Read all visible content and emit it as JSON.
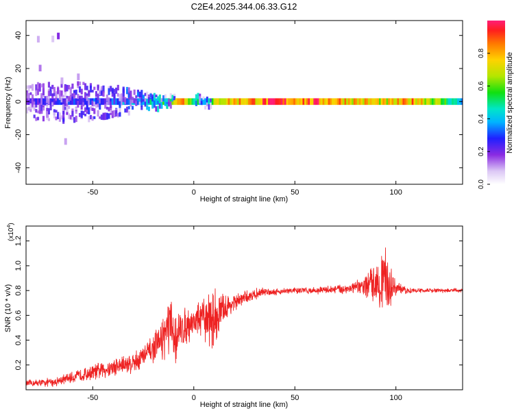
{
  "title": "C2E4.2025.344.06.33.G12",
  "colors": {
    "snr_line": "#ee2222",
    "axis": "#000000"
  },
  "chart_data": [
    {
      "type": "heatmap",
      "name": "spectrogram",
      "xlabel": "Height of straight line (km)",
      "ylabel": "Frequency (Hz)",
      "xlim": [
        -83,
        133
      ],
      "ylim": [
        -50,
        49
      ],
      "xticks": [
        -50,
        0,
        50,
        100
      ],
      "xtick_labels": [
        "-50",
        "0",
        "50",
        "100"
      ],
      "yticks": [
        -40,
        -20,
        0,
        20,
        40
      ],
      "ytick_labels": [
        "-40",
        "-20",
        "0",
        "20",
        "40"
      ],
      "band_center_hz": 0,
      "band_halfwidth_hz": 2,
      "colorbar": {
        "label": "Normalized spectral amplitude",
        "range": [
          0,
          1
        ],
        "ticks": [
          0.0,
          0.2,
          0.4,
          0.6,
          0.8
        ],
        "tick_labels": [
          "0.0",
          "0.2",
          "0.4",
          "0.6",
          "0.8"
        ],
        "colormap": "rainbow"
      },
      "profile": [
        {
          "x": -83,
          "amp": 0.25,
          "spread": 8
        },
        {
          "x": -60,
          "amp": 0.3,
          "spread": 9
        },
        {
          "x": -40,
          "amp": 0.35,
          "spread": 7
        },
        {
          "x": -28,
          "amp": 0.45,
          "spread": 5
        },
        {
          "x": -15,
          "amp": 0.55,
          "spread": 3
        },
        {
          "x": -5,
          "amp": 0.85,
          "spread": 2
        },
        {
          "x": 5,
          "amp": 0.35,
          "spread": 3
        },
        {
          "x": 12,
          "amp": 0.8,
          "spread": 2
        },
        {
          "x": 40,
          "amp": 0.95,
          "spread": 2
        },
        {
          "x": 68,
          "amp": 0.9,
          "spread": 2
        },
        {
          "x": 95,
          "amp": 0.75,
          "spread": 2
        },
        {
          "x": 110,
          "amp": 0.88,
          "spread": 2
        },
        {
          "x": 133,
          "amp": 0.4,
          "spread": 2
        }
      ]
    },
    {
      "type": "line",
      "name": "snr",
      "xlabel": "Height of straight line (km)",
      "ylabel": "SNR (10 * v/v)",
      "y_scale_label": "(x10^4)",
      "y_scale_base": "(x10",
      "y_scale_exp": "4",
      "xlim": [
        -83,
        133
      ],
      "ylim": [
        0.0,
        1.32
      ],
      "xticks": [
        -50,
        0,
        50,
        100
      ],
      "xtick_labels": [
        "-50",
        "0",
        "50",
        "100"
      ],
      "yticks": [
        0.2,
        0.4,
        0.6,
        0.8,
        1.0,
        1.2
      ],
      "ytick_labels": [
        "0.2",
        "0.4",
        "0.6",
        "0.8",
        "1.0",
        "1.2"
      ],
      "series": [
        {
          "name": "SNR",
          "x": [
            -83,
            -70,
            -60,
            -50,
            -40,
            -30,
            -25,
            -20,
            -15,
            -12,
            -10,
            -5,
            0,
            5,
            10,
            15,
            20,
            25,
            30,
            35,
            40,
            50,
            60,
            70,
            80,
            85,
            90,
            93,
            95,
            97,
            100,
            105,
            110,
            120,
            133
          ],
          "values": [
            0.05,
            0.06,
            0.1,
            0.14,
            0.18,
            0.22,
            0.27,
            0.33,
            0.42,
            0.52,
            0.4,
            0.5,
            0.55,
            0.58,
            0.57,
            0.65,
            0.7,
            0.74,
            0.77,
            0.79,
            0.79,
            0.8,
            0.8,
            0.81,
            0.82,
            0.84,
            0.87,
            0.9,
            0.88,
            0.84,
            0.82,
            0.8,
            0.8,
            0.8,
            0.8
          ],
          "noise": [
            0.03,
            0.04,
            0.05,
            0.07,
            0.09,
            0.1,
            0.11,
            0.12,
            0.2,
            0.3,
            0.25,
            0.18,
            0.14,
            0.2,
            0.3,
            0.14,
            0.08,
            0.06,
            0.05,
            0.04,
            0.03,
            0.03,
            0.03,
            0.04,
            0.06,
            0.1,
            0.2,
            0.35,
            0.28,
            0.2,
            0.06,
            0.03,
            0.02,
            0.02,
            0.02
          ]
        }
      ]
    }
  ]
}
